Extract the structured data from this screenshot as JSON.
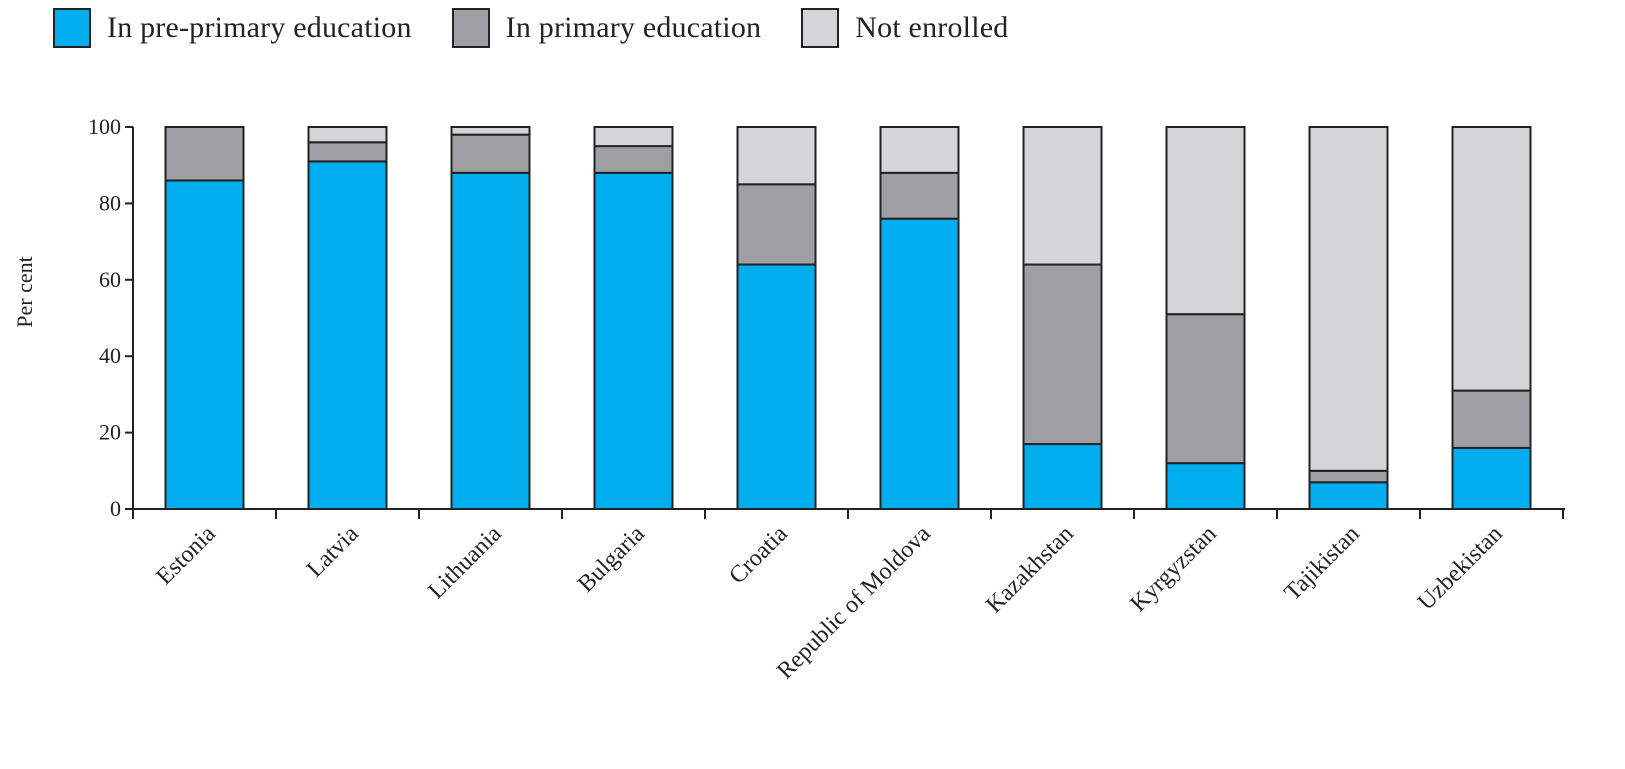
{
  "chart_data": {
    "type": "bar",
    "stacked": true,
    "categories": [
      "Estonia",
      "Latvia",
      "Lithuania",
      "Bulgaria",
      "Croatia",
      "Republic of Moldova",
      "Kazakhstan",
      "Kyrgyzstan",
      "Tajikistan",
      "Uzbekistan"
    ],
    "series": [
      {
        "name": "In pre-primary education",
        "color": "#00aeef",
        "values": [
          86,
          91,
          88,
          88,
          64,
          76,
          17,
          12,
          7,
          16
        ]
      },
      {
        "name": "In primary education",
        "color": "#9d9fa2",
        "values": [
          14,
          5,
          10,
          7,
          21,
          12,
          47,
          39,
          3,
          15
        ]
      },
      {
        "name": "Not enrolled",
        "color": "#d4d5d7",
        "values": [
          0,
          4,
          2,
          5,
          15,
          12,
          36,
          49,
          90,
          69
        ]
      }
    ],
    "title": "",
    "xlabel": "",
    "ylabel": "Per cent",
    "ylim": [
      0,
      100
    ],
    "yticks": [
      "0",
      "20",
      "40",
      "60",
      "80",
      "100"
    ],
    "grid": false,
    "legend_position": "top-left"
  }
}
